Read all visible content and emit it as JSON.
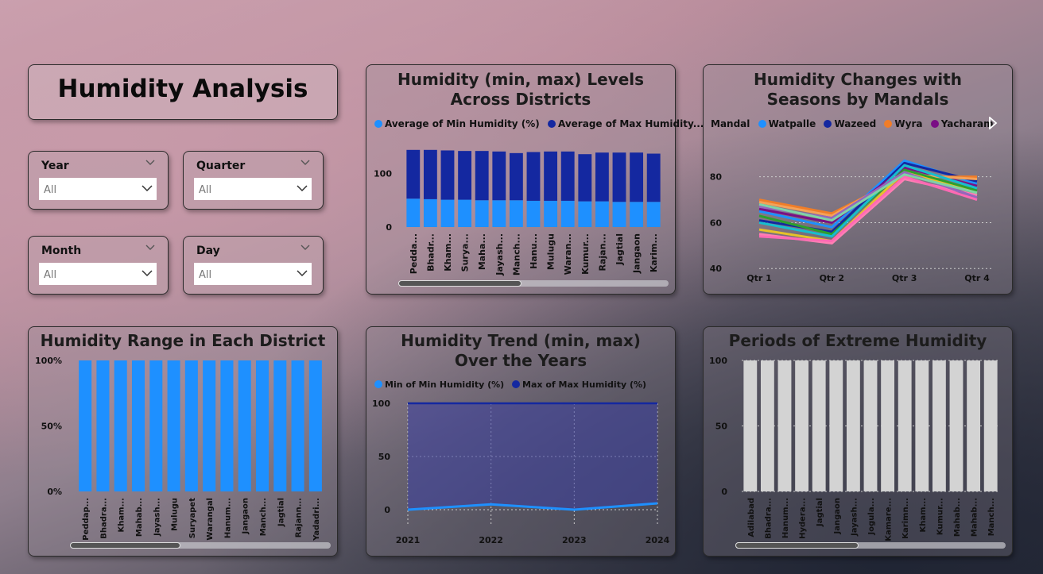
{
  "report": {
    "title": "Humidity Analysis"
  },
  "colors": {
    "min": "#1e90ff",
    "max": "#1428a0",
    "extreme_bar": "#d3d3d3",
    "mandal_watpalle": "#1e90ff",
    "mandal_wazeed": "#1428a0",
    "mandal_wyra": "#f07d28",
    "mandal_yacharam": "#7a0f85"
  },
  "slicers": [
    {
      "label": "Year",
      "value": "All"
    },
    {
      "label": "Quarter",
      "value": "All"
    },
    {
      "label": "Month",
      "value": "All"
    },
    {
      "label": "Day",
      "value": "All"
    }
  ],
  "chart1": {
    "title": "Humidity (min, max) Levels Across Districts",
    "legend": [
      "Average of Min Humidity (%)",
      "Average of Max Humidity..."
    ]
  },
  "chart2": {
    "title": "Humidity Changes with Seasons by Mandals",
    "legend_title": "Mandal",
    "legend": [
      "Watpalle",
      "Wazeed",
      "Wyra",
      "Yacharam"
    ]
  },
  "chart3": {
    "title": "Humidity Range in Each District"
  },
  "chart4": {
    "title": "Humidity Trend (min, max) Over the Years",
    "legend": [
      "Min of Min Humidity (%)",
      "Max of Max Humidity (%)"
    ]
  },
  "chart5": {
    "title": "Periods of Extreme Humidity"
  },
  "chart_data": [
    {
      "type": "bar",
      "stacked": true,
      "title": "Humidity (min, max) Levels Across Districts",
      "categories": [
        "Pedda...",
        "Bhadr...",
        "Kham...",
        "Surya...",
        "Maha...",
        "Jayash...",
        "Manch...",
        "Hanu...",
        "Mulugu",
        "Waran...",
        "Kumur...",
        "Rajan...",
        "Jagtial",
        "Jangaon",
        "Karim..."
      ],
      "series": [
        {
          "name": "Average of Min Humidity (%)",
          "values": [
            53,
            52,
            51,
            51,
            50,
            50,
            50,
            49,
            49,
            49,
            48,
            48,
            47,
            47,
            47
          ]
        },
        {
          "name": "Average of Max Humidity...",
          "values": [
            91,
            92,
            92,
            91,
            92,
            91,
            88,
            91,
            92,
            92,
            88,
            91,
            92,
            92,
            90
          ]
        }
      ],
      "yticks": [
        "0",
        "100"
      ],
      "ylim": [
        0,
        160
      ]
    },
    {
      "type": "line",
      "title": "Humidity Changes with Seasons by Mandals",
      "categories": [
        "Qtr 1",
        "Qtr 2",
        "Qtr 3",
        "Qtr 4"
      ],
      "yticks": [
        "40",
        "60",
        "80"
      ],
      "ylim": [
        38,
        92
      ],
      "series": [
        {
          "name": "Watpalle",
          "values": [
            65,
            58,
            87,
            77
          ]
        },
        {
          "name": "Wazeed",
          "values": [
            61,
            56,
            86,
            78
          ]
        },
        {
          "name": "Wyra",
          "values": [
            70,
            64,
            80,
            80
          ]
        },
        {
          "name": "Yacharam",
          "values": [
            66,
            60,
            84,
            76
          ]
        },
        {
          "values": [
            69,
            63,
            81,
            79
          ]
        },
        {
          "values": [
            63,
            55,
            83,
            74
          ]
        },
        {
          "values": [
            57,
            52,
            82,
            73
          ]
        },
        {
          "values": [
            55,
            51,
            79,
            72
          ]
        },
        {
          "values": [
            60,
            54,
            85,
            75
          ]
        },
        {
          "values": [
            67,
            62,
            82,
            71
          ]
        },
        {
          "values": [
            54,
            52,
            80,
            70
          ]
        },
        {
          "values": [
            68,
            61,
            81,
            73
          ]
        }
      ]
    },
    {
      "type": "bar",
      "title": "Humidity Range in Each District",
      "categories": [
        "Peddap...",
        "Bhadra...",
        "Kham...",
        "Mahab...",
        "Jayash...",
        "Mulugu",
        "Suryapet",
        "Warangal",
        "Hanum...",
        "Jangaon",
        "Manch...",
        "Jagtial",
        "Rajann...",
        "Yadadri..."
      ],
      "values": [
        100,
        100,
        100,
        100,
        100,
        100,
        100,
        100,
        100,
        100,
        100,
        100,
        100,
        100
      ],
      "yticks": [
        "0%",
        "50%",
        "100%"
      ],
      "ylim": [
        0,
        100
      ]
    },
    {
      "type": "area",
      "title": "Humidity Trend (min, max) Over the Years",
      "categories": [
        "2021",
        "2022",
        "2023",
        "2024"
      ],
      "series": [
        {
          "name": "Min of Min Humidity (%)",
          "values": [
            0,
            5,
            0,
            6
          ]
        },
        {
          "name": "Max of Max Humidity (%)",
          "values": [
            100,
            100,
            100,
            100
          ]
        }
      ],
      "yticks": [
        "0",
        "50",
        "100"
      ],
      "ylim": [
        0,
        100
      ]
    },
    {
      "type": "bar",
      "title": "Periods of Extreme Humidity",
      "categories": [
        "Adilabad",
        "Bhadra...",
        "Hanum...",
        "Hydera...",
        "Jagtial",
        "Jangaon",
        "Jayash...",
        "Jogula...",
        "Kamare...",
        "Karimn...",
        "Kham...",
        "Kumur...",
        "Mahab...",
        "Mahab...",
        "Manch..."
      ],
      "values": [
        100,
        100,
        100,
        100,
        100,
        100,
        100,
        100,
        100,
        100,
        100,
        100,
        100,
        100,
        100
      ],
      "yticks": [
        "0",
        "50",
        "100"
      ],
      "ylim": [
        0,
        100
      ]
    }
  ]
}
